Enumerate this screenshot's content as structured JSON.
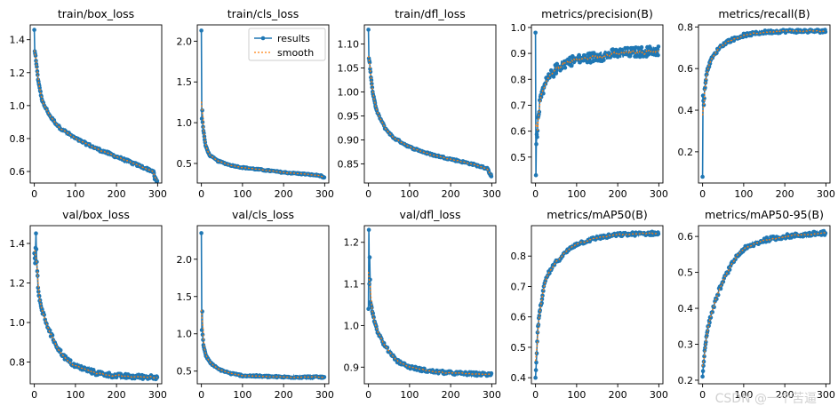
{
  "legend": {
    "results": "results",
    "smooth": "smooth"
  },
  "colors": {
    "results": "#1f77b4",
    "smooth": "#ff7f0e",
    "axis": "#000000"
  },
  "watermark": "CSDN @一个苦逼",
  "chart_data": [
    {
      "type": "line",
      "title": "train/box_loss",
      "x": [
        0,
        300
      ],
      "xticks": [
        0,
        100,
        200,
        300
      ],
      "xlim": [
        0,
        300
      ],
      "ylim": [
        0.53,
        1.49
      ],
      "yticks": [
        0.6,
        0.8,
        1.0,
        1.2,
        1.4
      ],
      "ytick_labels": [
        "0.6",
        "0.8",
        "1.0",
        "1.2",
        "1.4"
      ],
      "y_start": 1.46,
      "y_end": 0.54,
      "curve": [
        [
          0,
          1.46
        ],
        [
          1,
          1.33
        ],
        [
          3,
          1.3
        ],
        [
          5,
          1.25
        ],
        [
          10,
          1.14
        ],
        [
          20,
          1.02
        ],
        [
          40,
          0.93
        ],
        [
          60,
          0.87
        ],
        [
          100,
          0.8
        ],
        [
          150,
          0.74
        ],
        [
          200,
          0.69
        ],
        [
          250,
          0.64
        ],
        [
          290,
          0.6
        ],
        [
          293,
          0.56
        ],
        [
          296,
          0.55
        ],
        [
          299,
          0.54
        ]
      ],
      "noise": 0.008,
      "legend": false
    },
    {
      "type": "line",
      "title": "train/cls_loss",
      "x": [
        0,
        300
      ],
      "xticks": [
        0,
        100,
        200,
        300
      ],
      "xlim": [
        0,
        300
      ],
      "ylim": [
        0.26,
        2.2
      ],
      "yticks": [
        0.5,
        1.0,
        1.5,
        2.0
      ],
      "ytick_labels": [
        "0.5",
        "1.0",
        "1.5",
        "2.0"
      ],
      "y_start": 2.13,
      "y_end": 0.32,
      "curve": [
        [
          0,
          2.13
        ],
        [
          1,
          1.05
        ],
        [
          2,
          1.15
        ],
        [
          3,
          1.0
        ],
        [
          5,
          0.9
        ],
        [
          10,
          0.72
        ],
        [
          20,
          0.6
        ],
        [
          40,
          0.53
        ],
        [
          70,
          0.48
        ],
        [
          100,
          0.45
        ],
        [
          150,
          0.42
        ],
        [
          200,
          0.39
        ],
        [
          250,
          0.37
        ],
        [
          290,
          0.35
        ],
        [
          299,
          0.32
        ]
      ],
      "noise": 0.008,
      "legend": true
    },
    {
      "type": "line",
      "title": "train/dfl_loss",
      "x": [
        0,
        300
      ],
      "xticks": [
        0,
        100,
        200,
        300
      ],
      "xlim": [
        0,
        300
      ],
      "ylim": [
        0.81,
        1.14
      ],
      "yticks": [
        0.85,
        0.9,
        0.95,
        1.0,
        1.05,
        1.1
      ],
      "ytick_labels": [
        "0.85",
        "0.90",
        "0.95",
        "1.00",
        "1.05",
        "1.10"
      ],
      "y_start": 1.13,
      "y_end": 0.825,
      "curve": [
        [
          0,
          1.13
        ],
        [
          1,
          1.07
        ],
        [
          3,
          1.06
        ],
        [
          5,
          1.04
        ],
        [
          10,
          1.0
        ],
        [
          20,
          0.96
        ],
        [
          40,
          0.925
        ],
        [
          60,
          0.905
        ],
        [
          100,
          0.885
        ],
        [
          150,
          0.87
        ],
        [
          200,
          0.86
        ],
        [
          250,
          0.85
        ],
        [
          290,
          0.84
        ],
        [
          295,
          0.83
        ],
        [
          299,
          0.825
        ]
      ],
      "noise": 0.002,
      "legend": false
    },
    {
      "type": "line",
      "title": "metrics/precision(B)",
      "x": [
        0,
        300
      ],
      "xticks": [
        0,
        100,
        200,
        300
      ],
      "xlim": [
        0,
        300
      ],
      "ylim": [
        0.4,
        1.01
      ],
      "yticks": [
        0.5,
        0.6,
        0.7,
        0.8,
        0.9,
        1.0
      ],
      "ytick_labels": [
        "0.5",
        "0.6",
        "0.7",
        "0.8",
        "0.9",
        "1.0"
      ],
      "y_start": 0.98,
      "y_end": 0.91,
      "curve": [
        [
          0,
          0.98
        ],
        [
          1,
          0.43
        ],
        [
          2,
          0.55
        ],
        [
          5,
          0.62
        ],
        [
          10,
          0.7
        ],
        [
          20,
          0.77
        ],
        [
          30,
          0.8
        ],
        [
          50,
          0.84
        ],
        [
          80,
          0.87
        ],
        [
          120,
          0.88
        ],
        [
          160,
          0.89
        ],
        [
          200,
          0.9
        ],
        [
          250,
          0.905
        ],
        [
          299,
          0.91
        ]
      ],
      "noise": 0.02,
      "legend": false
    },
    {
      "type": "line",
      "title": "metrics/recall(B)",
      "x": [
        0,
        300
      ],
      "xticks": [
        0,
        100,
        200,
        300
      ],
      "xlim": [
        0,
        300
      ],
      "ylim": [
        0.05,
        0.81
      ],
      "yticks": [
        0.2,
        0.4,
        0.6,
        0.8
      ],
      "ytick_labels": [
        "0.2",
        "0.4",
        "0.6",
        "0.8"
      ],
      "y_start": 0.08,
      "y_end": 0.78,
      "curve": [
        [
          0,
          0.08
        ],
        [
          1,
          0.47
        ],
        [
          3,
          0.42
        ],
        [
          5,
          0.5
        ],
        [
          10,
          0.58
        ],
        [
          20,
          0.64
        ],
        [
          40,
          0.7
        ],
        [
          60,
          0.73
        ],
        [
          100,
          0.76
        ],
        [
          150,
          0.775
        ],
        [
          200,
          0.78
        ],
        [
          250,
          0.78
        ],
        [
          299,
          0.78
        ]
      ],
      "noise": 0.008,
      "legend": false
    },
    {
      "type": "line",
      "title": "val/box_loss",
      "x": [
        0,
        300
      ],
      "xticks": [
        0,
        100,
        200,
        300
      ],
      "xlim": [
        0,
        300
      ],
      "ylim": [
        0.69,
        1.49
      ],
      "yticks": [
        0.8,
        1.0,
        1.2,
        1.4
      ],
      "ytick_labels": [
        "0.8",
        "1.0",
        "1.2",
        "1.4"
      ],
      "y_start": 1.35,
      "y_end": 0.725,
      "curve": [
        [
          0,
          1.35
        ],
        [
          2,
          1.3
        ],
        [
          4,
          1.45
        ],
        [
          6,
          1.3
        ],
        [
          10,
          1.15
        ],
        [
          20,
          1.05
        ],
        [
          40,
          0.94
        ],
        [
          60,
          0.86
        ],
        [
          80,
          0.81
        ],
        [
          100,
          0.78
        ],
        [
          150,
          0.745
        ],
        [
          200,
          0.73
        ],
        [
          250,
          0.725
        ],
        [
          299,
          0.725
        ]
      ],
      "noise": 0.012,
      "legend": false
    },
    {
      "type": "line",
      "title": "val/cls_loss",
      "x": [
        0,
        300
      ],
      "xticks": [
        0,
        100,
        200,
        300
      ],
      "xlim": [
        0,
        300
      ],
      "ylim": [
        0.33,
        2.45
      ],
      "yticks": [
        0.5,
        1.0,
        1.5,
        2.0
      ],
      "ytick_labels": [
        "0.5",
        "1.0",
        "1.5",
        "2.0"
      ],
      "y_start": 2.35,
      "y_end": 0.42,
      "curve": [
        [
          0,
          2.35
        ],
        [
          1,
          1.05
        ],
        [
          2,
          1.3
        ],
        [
          3,
          1.0
        ],
        [
          5,
          0.85
        ],
        [
          10,
          0.72
        ],
        [
          20,
          0.62
        ],
        [
          40,
          0.53
        ],
        [
          70,
          0.47
        ],
        [
          100,
          0.44
        ],
        [
          150,
          0.43
        ],
        [
          200,
          0.42
        ],
        [
          250,
          0.42
        ],
        [
          299,
          0.42
        ]
      ],
      "noise": 0.012,
      "legend": false
    },
    {
      "type": "line",
      "title": "val/dfl_loss",
      "x": [
        0,
        300
      ],
      "xticks": [
        0,
        100,
        200,
        300
      ],
      "xlim": [
        0,
        300
      ],
      "ylim": [
        0.86,
        1.24
      ],
      "yticks": [
        0.9,
        1.0,
        1.1,
        1.2
      ],
      "ytick_labels": [
        "0.9",
        "1.0",
        "1.1",
        "1.2"
      ],
      "y_start": 1.04,
      "y_end": 0.882,
      "curve": [
        [
          0,
          1.04
        ],
        [
          1,
          1.23
        ],
        [
          2,
          1.1
        ],
        [
          3,
          1.16
        ],
        [
          5,
          1.06
        ],
        [
          10,
          1.03
        ],
        [
          20,
          0.99
        ],
        [
          40,
          0.95
        ],
        [
          70,
          0.915
        ],
        [
          100,
          0.9
        ],
        [
          150,
          0.89
        ],
        [
          200,
          0.886
        ],
        [
          250,
          0.884
        ],
        [
          299,
          0.882
        ]
      ],
      "noise": 0.004,
      "legend": false
    },
    {
      "type": "line",
      "title": "metrics/mAP50(B)",
      "x": [
        0,
        300
      ],
      "xticks": [
        0,
        100,
        200,
        300
      ],
      "xlim": [
        0,
        300
      ],
      "ylim": [
        0.38,
        0.9
      ],
      "yticks": [
        0.4,
        0.5,
        0.6,
        0.7,
        0.8
      ],
      "ytick_labels": [
        "0.4",
        "0.5",
        "0.6",
        "0.7",
        "0.8"
      ],
      "y_start": 0.4,
      "y_end": 0.875,
      "curve": [
        [
          0,
          0.4
        ],
        [
          2,
          0.45
        ],
        [
          5,
          0.55
        ],
        [
          10,
          0.62
        ],
        [
          15,
          0.65
        ],
        [
          20,
          0.7
        ],
        [
          30,
          0.74
        ],
        [
          50,
          0.78
        ],
        [
          80,
          0.82
        ],
        [
          100,
          0.84
        ],
        [
          150,
          0.86
        ],
        [
          200,
          0.87
        ],
        [
          250,
          0.873
        ],
        [
          299,
          0.875
        ]
      ],
      "noise": 0.006,
      "legend": false
    },
    {
      "type": "line",
      "title": "metrics/mAP50-95(B)",
      "x": [
        0,
        300
      ],
      "xticks": [
        0,
        100,
        200,
        300
      ],
      "xlim": [
        0,
        300
      ],
      "ylim": [
        0.19,
        0.63
      ],
      "yticks": [
        0.2,
        0.3,
        0.4,
        0.5,
        0.6
      ],
      "ytick_labels": [
        "0.2",
        "0.3",
        "0.4",
        "0.5",
        "0.6"
      ],
      "y_start": 0.21,
      "y_end": 0.61,
      "curve": [
        [
          0,
          0.21
        ],
        [
          2,
          0.24
        ],
        [
          5,
          0.28
        ],
        [
          10,
          0.33
        ],
        [
          20,
          0.38
        ],
        [
          40,
          0.45
        ],
        [
          60,
          0.5
        ],
        [
          80,
          0.54
        ],
        [
          100,
          0.565
        ],
        [
          150,
          0.59
        ],
        [
          200,
          0.6
        ],
        [
          250,
          0.605
        ],
        [
          299,
          0.61
        ]
      ],
      "noise": 0.006,
      "legend": false
    }
  ]
}
